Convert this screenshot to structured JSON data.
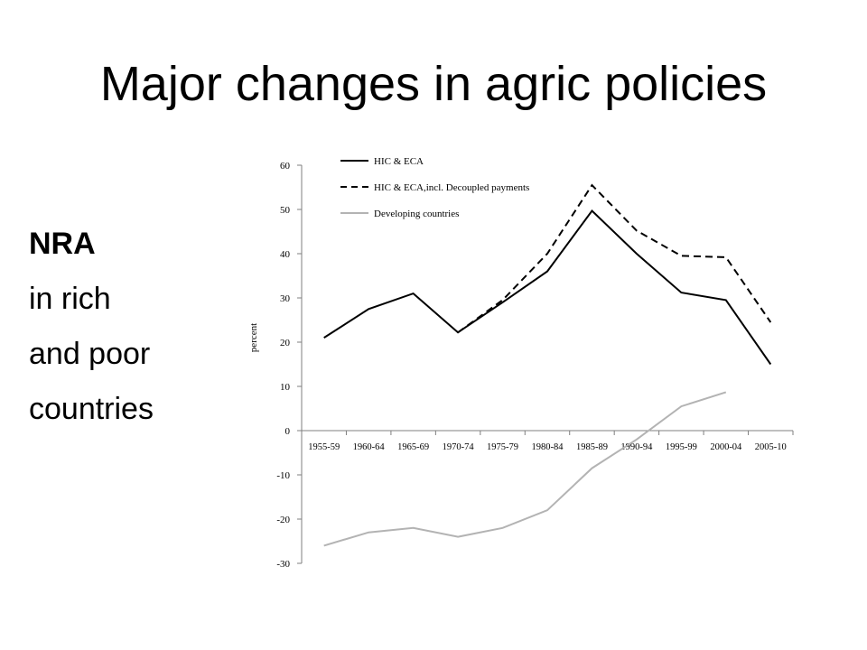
{
  "slide": {
    "title": "Major changes in agric policies",
    "side_text": [
      "NRA",
      "in rich",
      "and poor",
      "countries"
    ]
  },
  "chart_data": {
    "type": "line",
    "title": "",
    "xlabel": "",
    "ylabel": "percent",
    "ylim": [
      -30,
      60
    ],
    "yticks": [
      -30,
      -20,
      -10,
      0,
      10,
      20,
      30,
      40,
      50,
      60
    ],
    "grid": false,
    "legend_position": "top-left",
    "categories": [
      "1955-59",
      "1960-64",
      "1965-69",
      "1970-74",
      "1975-79",
      "1980-84",
      "1985-89",
      "1990-94",
      "1995-99",
      "2000-04",
      "2005-10"
    ],
    "series": [
      {
        "name": "HIC & ECA",
        "style": "solid",
        "color": "#000000",
        "values": [
          21,
          27.5,
          31,
          22.2,
          29,
          36,
          49.7,
          40,
          31.2,
          29.5,
          15
        ]
      },
      {
        "name": "HIC & ECA,incl. Decoupled payments",
        "style": "dashed",
        "color": "#000000",
        "values": [
          null,
          null,
          null,
          22.2,
          29.5,
          40,
          55.5,
          45.2,
          39.5,
          39.2,
          24.5
        ]
      },
      {
        "name": "Developing countries",
        "style": "solid",
        "color": "#b3b3b3",
        "values": [
          -26,
          -23,
          -22,
          -24,
          -22,
          -18,
          -8.5,
          -2,
          5.5,
          8.7,
          null
        ]
      }
    ]
  }
}
